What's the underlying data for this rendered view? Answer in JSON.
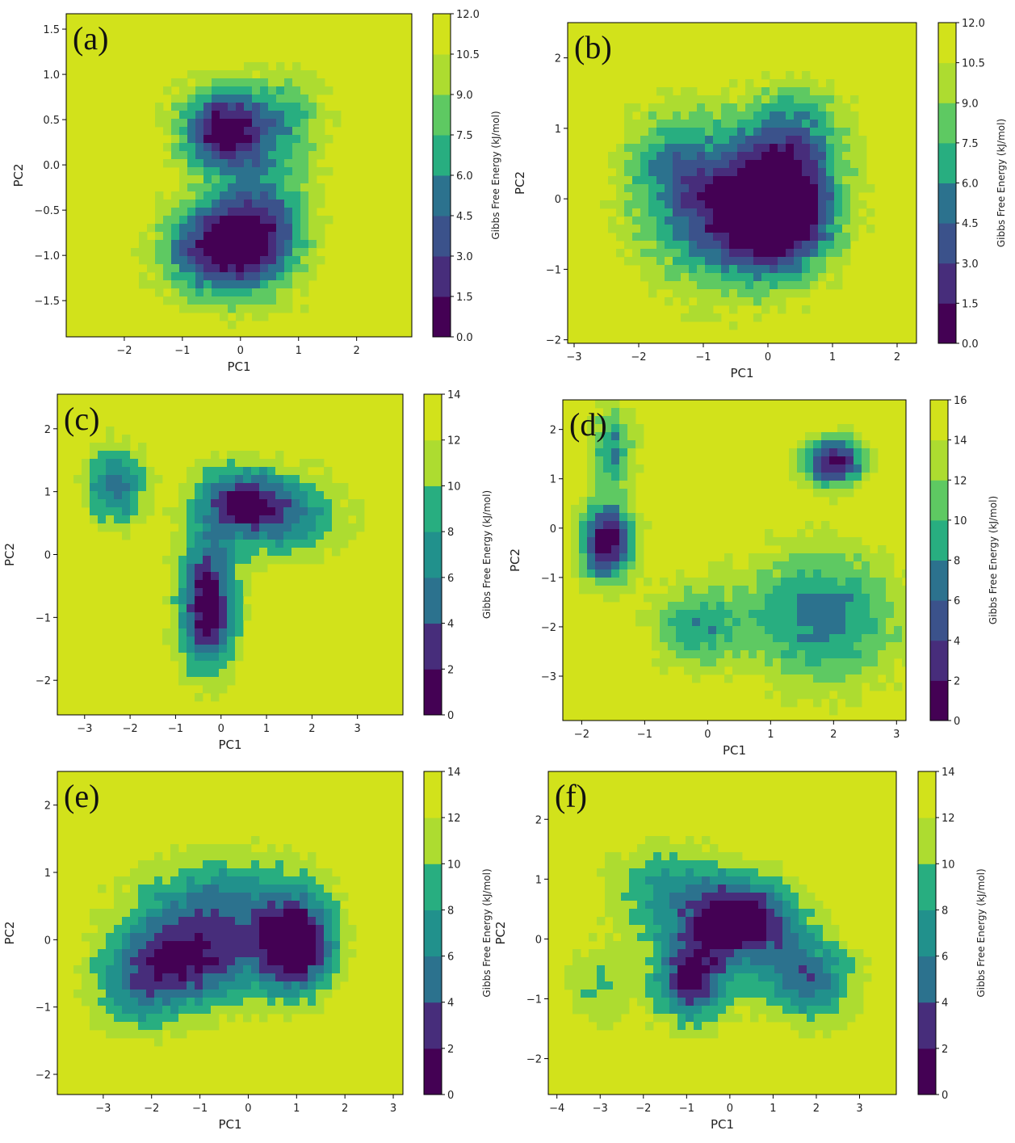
{
  "chart_data": [
    {
      "type": "heatmap",
      "panel": "(a)",
      "xlabel": "PC1",
      "ylabel": "PC2",
      "colorbar_label": "Gibbs Free Energy (kJ/mol)",
      "xlim": [
        -3.0,
        2.95
      ],
      "ylim": [
        -1.9,
        1.67
      ],
      "xticks": [
        "−2",
        "−1",
        "0",
        "1",
        "2"
      ],
      "xtick_values": [
        -2,
        -1,
        0,
        1,
        2
      ],
      "yticks": [
        "1.5",
        "1.0",
        "0.5",
        "0.0",
        "−0.5",
        "−1.0",
        "−1.5"
      ],
      "ytick_values": [
        1.5,
        1.0,
        0.5,
        0.0,
        -0.5,
        -1.0,
        -1.5
      ],
      "colorbar_ticks": [
        "0.0",
        "1.5",
        "3.0",
        "4.5",
        "6.0",
        "7.5",
        "9.0",
        "10.5",
        "12.0"
      ],
      "levels": [
        0,
        1.5,
        3,
        4.5,
        6,
        7.5,
        9,
        10.5,
        12
      ],
      "minima": [
        {
          "pc1": -0.25,
          "pc2": 0.4,
          "sx": 0.55,
          "sy": 0.32,
          "depth": 12
        },
        {
          "pc1": 0.3,
          "pc2": -0.75,
          "sx": 0.6,
          "sy": 0.45,
          "depth": 10
        },
        {
          "pc1": -0.6,
          "pc2": -0.95,
          "sx": 0.6,
          "sy": 0.35,
          "depth": 8
        },
        {
          "pc1": 0.9,
          "pc2": 0.5,
          "sx": 0.45,
          "sy": 0.4,
          "depth": 4
        }
      ]
    },
    {
      "type": "heatmap",
      "panel": "(b)",
      "xlabel": "PC1",
      "ylabel": "PC2",
      "colorbar_label": "Gibbs Free Energy (kJ/mol)",
      "xlim": [
        -3.1,
        2.3
      ],
      "ylim": [
        -2.05,
        2.5
      ],
      "xticks": [
        "−3",
        "−2",
        "−1",
        "0",
        "1",
        "2"
      ],
      "xtick_values": [
        -3,
        -2,
        -1,
        0,
        1,
        2
      ],
      "yticks": [
        "2",
        "1",
        "0",
        "−1",
        "−2"
      ],
      "ytick_values": [
        2,
        1,
        0,
        -1,
        -2
      ],
      "colorbar_ticks": [
        "0.0",
        "1.5",
        "3.0",
        "4.5",
        "6.0",
        "7.5",
        "9.0",
        "10.5",
        "12.0"
      ],
      "levels": [
        0,
        1.5,
        3,
        4.5,
        6,
        7.5,
        9,
        10.5,
        12
      ],
      "minima": [
        {
          "pc1": 0.2,
          "pc2": -0.2,
          "sx": 0.55,
          "sy": 0.5,
          "depth": 12
        },
        {
          "pc1": -0.6,
          "pc2": -0.2,
          "sx": 0.9,
          "sy": 0.75,
          "depth": 9
        },
        {
          "pc1": 0.4,
          "pc2": 0.9,
          "sx": 0.6,
          "sy": 0.5,
          "depth": 6
        },
        {
          "pc1": -1.5,
          "pc2": 0.6,
          "sx": 0.5,
          "sy": 0.5,
          "depth": 4
        }
      ]
    },
    {
      "type": "heatmap",
      "panel": "(c)",
      "xlabel": "PC1",
      "ylabel": "PC2",
      "colorbar_label": "Gibbs Free Energy (kJ/mol)",
      "xlim": [
        -3.6,
        4.0
      ],
      "ylim": [
        -2.55,
        2.55
      ],
      "xticks": [
        "−3",
        "−2",
        "−1",
        "0",
        "1",
        "2",
        "3"
      ],
      "xtick_values": [
        -3,
        -2,
        -1,
        0,
        1,
        2,
        3
      ],
      "yticks": [
        "2",
        "1",
        "0",
        "−1",
        "−2"
      ],
      "ytick_values": [
        2,
        1,
        0,
        -1,
        -2
      ],
      "colorbar_ticks": [
        "0",
        "2",
        "4",
        "6",
        "8",
        "10",
        "12",
        "14"
      ],
      "levels": [
        0,
        2,
        4,
        6,
        8,
        10,
        12,
        14
      ],
      "minima": [
        {
          "pc1": -0.3,
          "pc2": -0.8,
          "sx": 0.45,
          "sy": 0.75,
          "depth": 14
        },
        {
          "pc1": 0.4,
          "pc2": 0.85,
          "sx": 0.7,
          "sy": 0.4,
          "depth": 10
        },
        {
          "pc1": -2.3,
          "pc2": 1.1,
          "sx": 0.5,
          "sy": 0.45,
          "depth": 9
        },
        {
          "pc1": 1.5,
          "pc2": 0.6,
          "sx": 0.9,
          "sy": 0.5,
          "depth": 7
        }
      ]
    },
    {
      "type": "heatmap",
      "panel": "(d)",
      "xlabel": "PC1",
      "ylabel": "PC2",
      "colorbar_label": "Gibbs Free Energy (kJ/mol)",
      "xlim": [
        -2.3,
        3.15
      ],
      "ylim": [
        -3.9,
        2.6
      ],
      "xticks": [
        "−2",
        "−1",
        "0",
        "1",
        "2",
        "3"
      ],
      "xtick_values": [
        -2,
        -1,
        0,
        1,
        2,
        3
      ],
      "yticks": [
        "2",
        "1",
        "0",
        "−1",
        "−2",
        "−3"
      ],
      "ytick_values": [
        2,
        1,
        0,
        -1,
        -2,
        -3
      ],
      "colorbar_ticks": [
        "0",
        "2",
        "4",
        "6",
        "8",
        "10",
        "12",
        "14",
        "16"
      ],
      "levels": [
        0,
        2,
        4,
        6,
        8,
        10,
        12,
        14,
        16
      ],
      "minima": [
        {
          "pc1": -1.6,
          "pc2": -0.3,
          "sx": 0.3,
          "sy": 0.55,
          "depth": 16
        },
        {
          "pc1": 2.0,
          "pc2": 1.35,
          "sx": 0.35,
          "sy": 0.35,
          "depth": 15
        },
        {
          "pc1": 1.8,
          "pc2": -1.8,
          "sx": 0.9,
          "sy": 1.0,
          "depth": 9
        },
        {
          "pc1": -0.2,
          "pc2": -2.0,
          "sx": 0.5,
          "sy": 0.6,
          "depth": 7
        },
        {
          "pc1": -1.5,
          "pc2": 1.6,
          "sx": 0.25,
          "sy": 0.6,
          "depth": 8
        }
      ]
    },
    {
      "type": "heatmap",
      "panel": "(e)",
      "xlabel": "PC1",
      "ylabel": "PC2",
      "colorbar_label": "Gibbs Free Energy (kJ/mol)",
      "xlim": [
        -3.95,
        3.2
      ],
      "ylim": [
        -2.3,
        2.5
      ],
      "xticks": [
        "−3",
        "−2",
        "−1",
        "0",
        "1",
        "2",
        "3"
      ],
      "xtick_values": [
        -3,
        -2,
        -1,
        0,
        1,
        2,
        3
      ],
      "yticks": [
        "2",
        "1",
        "0",
        "−1",
        "−2"
      ],
      "ytick_values": [
        2,
        1,
        0,
        -1,
        -2
      ],
      "colorbar_ticks": [
        "0",
        "2",
        "4",
        "6",
        "8",
        "10",
        "12",
        "14"
      ],
      "levels": [
        0,
        2,
        4,
        6,
        8,
        10,
        12,
        14
      ],
      "minima": [
        {
          "pc1": 1.0,
          "pc2": -0.1,
          "sx": 0.55,
          "sy": 0.5,
          "depth": 14
        },
        {
          "pc1": -1.2,
          "pc2": -0.3,
          "sx": 1.1,
          "sy": 0.5,
          "depth": 11
        },
        {
          "pc1": -0.5,
          "pc2": 0.6,
          "sx": 1.3,
          "sy": 0.5,
          "depth": 7
        },
        {
          "pc1": -2.3,
          "pc2": -0.8,
          "sx": 0.7,
          "sy": 0.5,
          "depth": 5
        }
      ]
    },
    {
      "type": "heatmap",
      "panel": "(f)",
      "xlabel": "PC1",
      "ylabel": "PC2",
      "colorbar_label": "Gibbs Free Energy (kJ/mol)",
      "xlim": [
        -4.2,
        3.85
      ],
      "ylim": [
        -2.6,
        2.8
      ],
      "xticks": [
        "−4",
        "−3",
        "−2",
        "−1",
        "0",
        "1",
        "2",
        "3"
      ],
      "xtick_values": [
        -4,
        -3,
        -2,
        -1,
        0,
        1,
        2,
        3
      ],
      "yticks": [
        "2",
        "1",
        "0",
        "−1",
        "−2"
      ],
      "ytick_values": [
        2,
        1,
        0,
        -1,
        -2
      ],
      "colorbar_ticks": [
        "0",
        "2",
        "4",
        "6",
        "8",
        "10",
        "12",
        "14"
      ],
      "levels": [
        0,
        2,
        4,
        6,
        8,
        10,
        12,
        14
      ],
      "minima": [
        {
          "pc1": 0.3,
          "pc2": 0.3,
          "sx": 0.9,
          "sy": 0.5,
          "depth": 14
        },
        {
          "pc1": -0.9,
          "pc2": -0.7,
          "sx": 0.6,
          "sy": 0.5,
          "depth": 12
        },
        {
          "pc1": 1.8,
          "pc2": -0.7,
          "sx": 0.8,
          "sy": 0.5,
          "depth": 9
        },
        {
          "pc1": -1.5,
          "pc2": 0.8,
          "sx": 1.0,
          "sy": 0.6,
          "depth": 6
        },
        {
          "pc1": -3.0,
          "pc2": -0.8,
          "sx": 0.6,
          "sy": 0.5,
          "depth": 4
        }
      ]
    }
  ],
  "colors": {
    "palette": [
      "#440154",
      "#472d7b",
      "#3b528b",
      "#2c728e",
      "#21918c",
      "#28ae80",
      "#5ec962",
      "#addc30",
      "#d2e21b"
    ],
    "high": "#d2e21b"
  }
}
